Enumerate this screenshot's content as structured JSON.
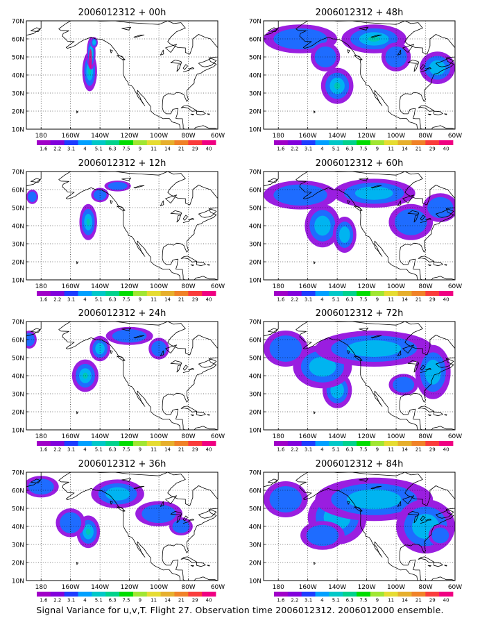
{
  "caption": "Signal Variance for u,v,T. Flight 27. Observation time 2006012312. 2006012000 ensemble.",
  "colorbar": {
    "labels": [
      "1.6",
      "2.2",
      "3.1",
      "4",
      "5.1",
      "6.3",
      "7.5",
      "9",
      "11",
      "14",
      "21",
      "29",
      "40"
    ],
    "colors": [
      "#a000c8",
      "#8200dc",
      "#1e3cff",
      "#00a0ff",
      "#00c8c8",
      "#00d28c",
      "#00dc00",
      "#a0e632",
      "#e6dc32",
      "#e6af2d",
      "#f08228",
      "#fa3c3c",
      "#f00082"
    ]
  },
  "axes": {
    "x_ticks": [
      "180",
      "160W",
      "140W",
      "120W",
      "100W",
      "80W",
      "60W"
    ],
    "y_ticks": [
      "10N",
      "20N",
      "30N",
      "40N",
      "50N",
      "60N",
      "70N"
    ],
    "x_range_deg": [
      -190,
      -60
    ],
    "y_range_deg": [
      10,
      70
    ],
    "grid": true,
    "grid_style": "dotted"
  },
  "chart_data": [
    {
      "type": "heatmap",
      "title": "2006012312 + 00h",
      "lead_hours": 0,
      "blobs": [
        [
          -147,
          42,
          5,
          11,
          3
        ],
        [
          -146,
          52,
          3,
          9,
          4
        ],
        [
          -144,
          58,
          2.5,
          3,
          2
        ]
      ]
    },
    {
      "type": "heatmap",
      "title": "2006012312 + 12h",
      "lead_hours": 12,
      "blobs": [
        [
          -148,
          42,
          6,
          10,
          3
        ],
        [
          -140,
          57,
          6,
          4,
          1
        ],
        [
          -128,
          62,
          9,
          3,
          1
        ],
        [
          -186,
          56,
          4,
          4,
          1
        ]
      ]
    },
    {
      "type": "heatmap",
      "title": "2006012312 + 24h",
      "lead_hours": 24,
      "blobs": [
        [
          -150,
          40,
          9,
          9,
          3
        ],
        [
          -140,
          55,
          7,
          7,
          2
        ],
        [
          -120,
          62,
          16,
          5,
          1
        ],
        [
          -100,
          55,
          7,
          6,
          1
        ],
        [
          -188,
          60,
          5,
          5,
          1
        ]
      ]
    },
    {
      "type": "heatmap",
      "title": "2006012312 + 36h",
      "lead_hours": 36,
      "blobs": [
        [
          -148,
          37,
          8,
          9,
          3
        ],
        [
          -160,
          42,
          10,
          8,
          1
        ],
        [
          -128,
          58,
          18,
          8,
          2
        ],
        [
          -100,
          47,
          16,
          7,
          1
        ],
        [
          -85,
          40,
          8,
          5,
          1
        ],
        [
          -180,
          62,
          12,
          6,
          1
        ]
      ]
    },
    {
      "type": "heatmap",
      "title": "2006012312 + 48h",
      "lead_hours": 48,
      "blobs": [
        [
          -140,
          34,
          11,
          10,
          3
        ],
        [
          -115,
          60,
          22,
          8,
          3
        ],
        [
          -165,
          60,
          25,
          8,
          1
        ],
        [
          -100,
          50,
          10,
          8,
          1
        ],
        [
          -72,
          44,
          12,
          9,
          2
        ],
        [
          -148,
          50,
          10,
          8,
          1
        ]
      ]
    },
    {
      "type": "heatmap",
      "title": "2006012312 + 60h",
      "lead_hours": 60,
      "blobs": [
        [
          -150,
          40,
          12,
          12,
          2
        ],
        [
          -135,
          35,
          8,
          10,
          2
        ],
        [
          -115,
          58,
          28,
          8,
          2
        ],
        [
          -165,
          57,
          25,
          8,
          1
        ],
        [
          -90,
          42,
          15,
          10,
          1
        ],
        [
          -70,
          50,
          12,
          8,
          1
        ]
      ]
    },
    {
      "type": "heatmap",
      "title": "2006012312 + 72h",
      "lead_hours": 72,
      "blobs": [
        [
          -140,
          32,
          10,
          10,
          2
        ],
        [
          -150,
          45,
          20,
          12,
          2
        ],
        [
          -115,
          55,
          40,
          10,
          2
        ],
        [
          -75,
          42,
          12,
          15,
          2
        ],
        [
          -95,
          35,
          10,
          6,
          1
        ],
        [
          -175,
          55,
          15,
          10,
          1
        ]
      ]
    },
    {
      "type": "heatmap",
      "title": "2006012312 + 84h",
      "lead_hours": 84,
      "blobs": [
        [
          -140,
          45,
          20,
          15,
          2
        ],
        [
          -115,
          55,
          40,
          12,
          2
        ],
        [
          -80,
          40,
          20,
          15,
          2
        ],
        [
          -150,
          35,
          15,
          8,
          1
        ],
        [
          -175,
          55,
          15,
          10,
          1
        ],
        [
          -70,
          35,
          8,
          6,
          1
        ]
      ]
    }
  ]
}
